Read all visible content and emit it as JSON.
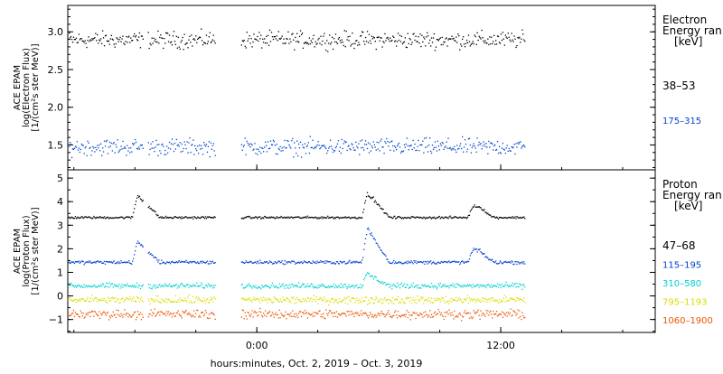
{
  "chart_data": [
    {
      "type": "scatter",
      "panel": "electron",
      "ylabel_lines": [
        "ACE EPAM",
        "log(Electron Flux)",
        "[1/(cm²s ster MeV)]"
      ],
      "yticks": [
        "1.5",
        "2.0",
        "2.5",
        "3.0"
      ],
      "ylim": [
        1.17,
        3.35
      ],
      "legend_title_lines": [
        "Electron",
        "Energy ran",
        "[keV]"
      ],
      "series": [
        {
          "name": "38–53",
          "color": "#000000",
          "mean": 2.9,
          "spread": 0.09,
          "mean_at_12h": 2.9
        },
        {
          "name": "175–315",
          "color": "#0044cc",
          "mean": 1.48,
          "spread": 0.09,
          "mean_at_12h": 1.5
        }
      ]
    },
    {
      "type": "scatter",
      "panel": "proton",
      "ylabel_lines": [
        "ACE EPAM",
        "log(Proton Flux)",
        "[1/(cm²s ster MeV)]"
      ],
      "yticks": [
        "−1",
        "0",
        "1",
        "2",
        "3",
        "4",
        "5"
      ],
      "ylim": [
        -1.55,
        5.35
      ],
      "legend_title_lines": [
        "Proton",
        "Energy ran",
        "[keV]"
      ],
      "series": [
        {
          "name": "47–68",
          "color": "#000000",
          "mean": 3.35,
          "spread": 0.04,
          "jump_at_minus_1h": 0.03
        },
        {
          "name": "115–195",
          "color": "#0044cc",
          "mean": 1.45,
          "spread": 0.06,
          "jump_at_minus_1h": 0.05
        },
        {
          "name": "310–580",
          "color": "#00d0d0",
          "mean": 0.45,
          "spread": 0.09
        },
        {
          "name": "795–1193",
          "color": "#dddd00",
          "mean": -0.15,
          "spread": 0.13
        },
        {
          "name": "1060–1900",
          "color": "#ee5500",
          "mean": -0.75,
          "spread": 0.16
        }
      ]
    }
  ],
  "time_axis": {
    "hours_range": [
      -9.3,
      19.6
    ],
    "data_range": [
      -9.3,
      13.2
    ],
    "gaps": [
      [
        -5.6,
        -5.4
      ],
      [
        -2.05,
        -0.8
      ]
    ],
    "tick_labels": [
      {
        "hour": 0,
        "label": "0:00"
      },
      {
        "hour": 12,
        "label": "12:00"
      }
    ],
    "xlabel": "hours:minutes, Oct.  2, 2019 – Oct.  3, 2019"
  },
  "events": [
    {
      "at_hour": -5.9,
      "panel": "proton",
      "series": [
        0,
        1
      ],
      "peak": [
        4.4,
        2.4
      ]
    },
    {
      "at_hour": 5.4,
      "panel": "proton",
      "series": [
        0,
        1,
        2
      ],
      "peak": [
        4.5,
        3.0,
        1.0
      ]
    },
    {
      "at_hour": 10.6,
      "panel": "proton",
      "series": [
        0,
        1
      ],
      "peak": [
        3.75,
        1.9
      ]
    }
  ]
}
